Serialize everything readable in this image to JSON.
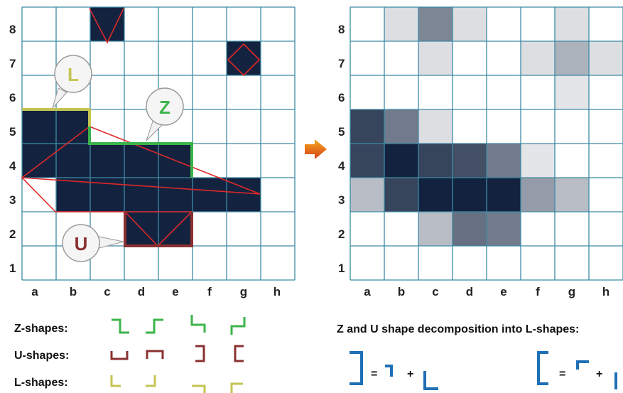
{
  "rows": [
    "1",
    "2",
    "3",
    "4",
    "5",
    "6",
    "7",
    "8"
  ],
  "cols": [
    "a",
    "b",
    "c",
    "d",
    "e",
    "f",
    "g",
    "h"
  ],
  "left_grid": {
    "filled": [
      "c8",
      "g7",
      "a5",
      "b5",
      "a4",
      "b4",
      "c4",
      "d4",
      "e4",
      "b3",
      "c3",
      "d3",
      "e3",
      "f3",
      "g3",
      "d2",
      "e2"
    ]
  },
  "right_grid": {
    "shades": [
      [
        "b8",
        0.15
      ],
      [
        "c8",
        0.55
      ],
      [
        "d8",
        0.15
      ],
      [
        "g8",
        0.15
      ],
      [
        "c7",
        0.15
      ],
      [
        "f7",
        0.15
      ],
      [
        "g7",
        0.35
      ],
      [
        "h7",
        0.15
      ],
      [
        "g6",
        0.12
      ],
      [
        "a5",
        0.85
      ],
      [
        "b5",
        0.6
      ],
      [
        "c5",
        0.15
      ],
      [
        "a4",
        0.85
      ],
      [
        "b4",
        1.0
      ],
      [
        "c4",
        0.85
      ],
      [
        "d4",
        0.8
      ],
      [
        "e4",
        0.6
      ],
      [
        "f4",
        0.12
      ],
      [
        "a3",
        0.3
      ],
      [
        "b3",
        0.85
      ],
      [
        "c3",
        1.0
      ],
      [
        "d3",
        1.0
      ],
      [
        "e3",
        1.0
      ],
      [
        "f3",
        0.45
      ],
      [
        "g3",
        0.3
      ],
      [
        "c2",
        0.3
      ],
      [
        "d2",
        0.65
      ],
      [
        "e2",
        0.6
      ]
    ]
  },
  "bubbles": {
    "l": "L",
    "z": "Z",
    "u": "U"
  },
  "legend": {
    "z_label": "Z-shapes:",
    "u_label": "U-shapes:",
    "l_label": "L-shapes:"
  },
  "decomposition": {
    "title": "Z and U shape decomposition  into L-shapes:",
    "eq1_equals": "=",
    "eq1_plus": "+",
    "eq2_equals": "=",
    "eq2_plus": "+"
  },
  "colors": {
    "cell_dark": "#13233f",
    "grid_line": "#3d8aa5",
    "red_line": "#e02828",
    "l_color": "#c4c453",
    "z_color": "#3cb44b",
    "u_color": "#8b3030",
    "decomp_blue": "#1f6fb5",
    "arrow": "#e8701a"
  }
}
